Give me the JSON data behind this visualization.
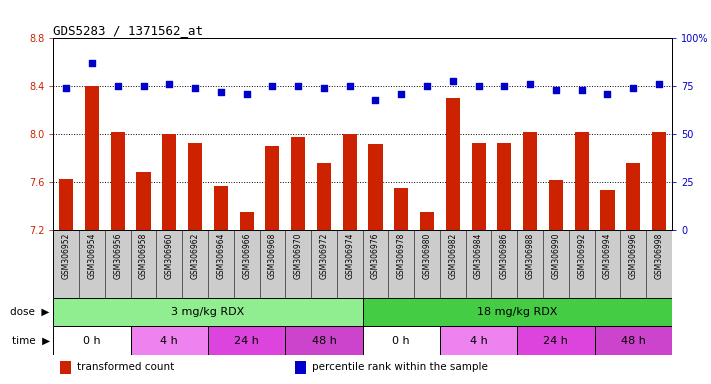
{
  "title": "GDS5283 / 1371562_at",
  "samples": [
    "GSM306952",
    "GSM306954",
    "GSM306956",
    "GSM306958",
    "GSM306960",
    "GSM306962",
    "GSM306964",
    "GSM306966",
    "GSM306968",
    "GSM306970",
    "GSM306972",
    "GSM306974",
    "GSM306976",
    "GSM306978",
    "GSM306980",
    "GSM306982",
    "GSM306984",
    "GSM306986",
    "GSM306988",
    "GSM306990",
    "GSM306992",
    "GSM306994",
    "GSM306996",
    "GSM306998"
  ],
  "bar_values": [
    7.63,
    8.4,
    8.02,
    7.69,
    8.0,
    7.93,
    7.57,
    7.35,
    7.9,
    7.98,
    7.76,
    8.0,
    7.92,
    7.55,
    7.35,
    8.3,
    7.93,
    7.93,
    8.02,
    7.62,
    8.02,
    7.54,
    7.76,
    8.02
  ],
  "percentile_values": [
    74,
    87,
    75,
    75,
    76,
    74,
    72,
    71,
    75,
    75,
    74,
    75,
    68,
    71,
    75,
    78,
    75,
    75,
    76,
    73,
    73,
    71,
    74,
    76
  ],
  "bar_color": "#cc2200",
  "percentile_color": "#0000cc",
  "ylim_left": [
    7.2,
    8.8
  ],
  "ylim_right": [
    0,
    100
  ],
  "yticks_left": [
    7.2,
    7.6,
    8.0,
    8.4,
    8.8
  ],
  "yticks_right": [
    0,
    25,
    50,
    75,
    100
  ],
  "ytick_labels_right": [
    "0",
    "25",
    "50",
    "75",
    "100%"
  ],
  "dose_groups": [
    {
      "label": "3 mg/kg RDX",
      "start": 0,
      "end": 12,
      "color": "#90ee90"
    },
    {
      "label": "18 mg/kg RDX",
      "start": 12,
      "end": 24,
      "color": "#44cc44"
    }
  ],
  "time_groups": [
    {
      "label": "0 h",
      "start": 0,
      "end": 3,
      "color": "#ffffff"
    },
    {
      "label": "4 h",
      "start": 3,
      "end": 6,
      "color": "#ee82ee"
    },
    {
      "label": "24 h",
      "start": 6,
      "end": 9,
      "color": "#dd44dd"
    },
    {
      "label": "48 h",
      "start": 9,
      "end": 12,
      "color": "#cc44cc"
    },
    {
      "label": "0 h",
      "start": 12,
      "end": 15,
      "color": "#ffffff"
    },
    {
      "label": "4 h",
      "start": 15,
      "end": 18,
      "color": "#ee82ee"
    },
    {
      "label": "24 h",
      "start": 18,
      "end": 21,
      "color": "#dd44dd"
    },
    {
      "label": "48 h",
      "start": 21,
      "end": 24,
      "color": "#cc44cc"
    }
  ],
  "legend_items": [
    {
      "label": "transformed count",
      "color": "#cc2200"
    },
    {
      "label": "percentile rank within the sample",
      "color": "#0000cc"
    }
  ],
  "dose_label": "dose",
  "time_label": "time",
  "background_color": "#ffffff",
  "xtick_bg_color": "#cccccc",
  "grid_color": "#000000",
  "tick_label_color_left": "#cc2200",
  "tick_label_color_right": "#0000cc"
}
